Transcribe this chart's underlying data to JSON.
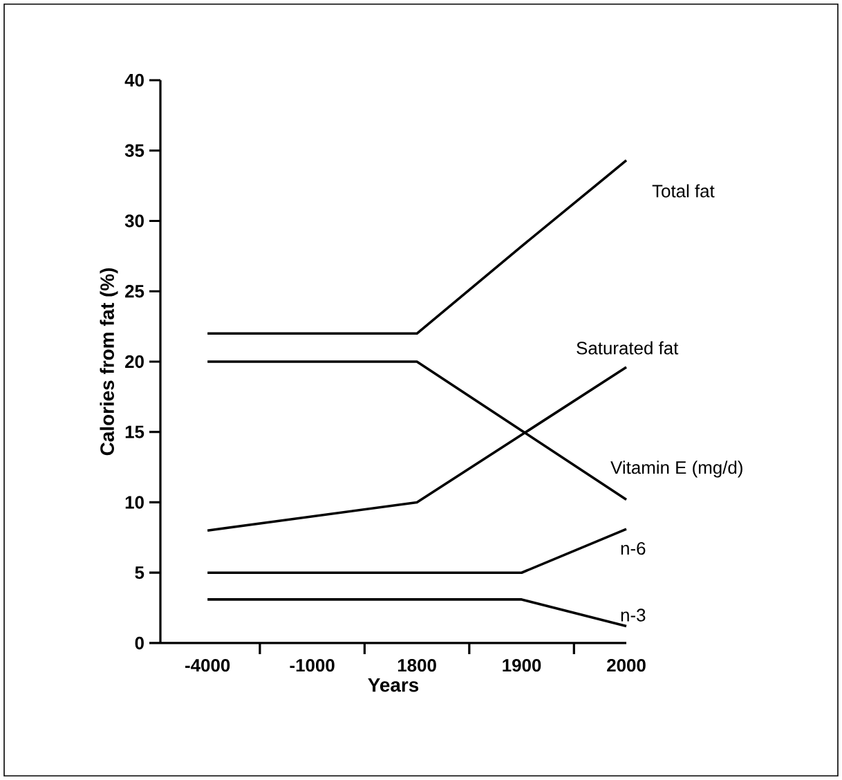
{
  "chart_data": {
    "type": "line",
    "xlabel": "Years",
    "ylabel": "Calories from fat (%)",
    "categories": [
      "-4000",
      "-1000",
      "1800",
      "1900",
      "2000"
    ],
    "ylim": [
      0,
      40
    ],
    "yticks": [
      0,
      5,
      10,
      15,
      20,
      25,
      30,
      35,
      40
    ],
    "grid": false,
    "legend": false,
    "marker": "none",
    "line_style": "solid",
    "series": [
      {
        "name": "Total fat",
        "color": "#000000",
        "values": [
          22,
          22,
          22,
          28.2,
          34.3
        ]
      },
      {
        "name": "Saturated fat",
        "color": "#000000",
        "values": [
          8,
          9,
          10,
          14.8,
          19.6
        ]
      },
      {
        "name": "Vitamin E (mg/d)",
        "color": "#000000",
        "values": [
          20,
          20,
          20,
          15.1,
          10.2
        ]
      },
      {
        "name": "n-6",
        "color": "#000000",
        "values": [
          5,
          5,
          5,
          5,
          8.1
        ]
      },
      {
        "name": "n-3",
        "color": "#000000",
        "values": [
          3.1,
          3.1,
          3.1,
          3.1,
          1.2
        ]
      }
    ]
  }
}
